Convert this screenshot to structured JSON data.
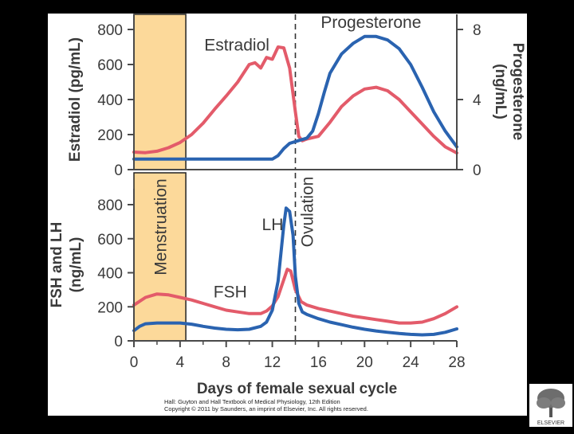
{
  "colors": {
    "background": "#000000",
    "panel": "#ffffff",
    "menstruation_band": "#fcd99a",
    "estradiol": "#e35b6a",
    "progesterone": "#2a63b0",
    "fsh": "#e35b6a",
    "lh": "#2a63b0",
    "axis": "#4a4a4a",
    "text": "#3a3a3a"
  },
  "publisher": {
    "logo_text": "ELSEVIER",
    "logo_icon": "tree-logo-icon"
  },
  "credit": {
    "line1": "Hall: Guyton and Hall Textbook of Medical Physiology, 12th Edition",
    "line2": "Copyright © 2011 by Saunders, an imprint of Elsevier, Inc. All rights reserved."
  },
  "chart_data": [
    {
      "type": "line",
      "panel": "top",
      "ylabel": "Estradiol (pg/mL)",
      "y2label": "Progesterone (ng/mL)",
      "ylim": [
        0,
        800
      ],
      "y2lim": [
        0,
        8
      ],
      "yticks": [
        "0",
        "200",
        "400",
        "600",
        "800"
      ],
      "y2ticks": [
        "0",
        "4",
        "8"
      ],
      "xlim": [
        0,
        28
      ],
      "series": [
        {
          "name": "Estradiol",
          "label": "Estradiol",
          "axis": "left",
          "color": "#e35b6a",
          "x": [
            0,
            1,
            2,
            3,
            4,
            5,
            6,
            7,
            8,
            9,
            10,
            10.5,
            11,
            11.5,
            12,
            12.5,
            13,
            13.5,
            14,
            14.3,
            14.6,
            15,
            16,
            17,
            18,
            19,
            20,
            21,
            22,
            23,
            24,
            25,
            26,
            27,
            28
          ],
          "y": [
            100,
            97,
            105,
            125,
            155,
            200,
            265,
            345,
            420,
            500,
            600,
            610,
            580,
            640,
            630,
            700,
            695,
            580,
            330,
            190,
            165,
            175,
            190,
            270,
            360,
            420,
            460,
            470,
            450,
            400,
            330,
            260,
            190,
            130,
            95
          ]
        },
        {
          "name": "Progesterone",
          "label": "Progesterone",
          "axis": "right",
          "color": "#2a63b0",
          "x": [
            0,
            1,
            2,
            3,
            4,
            5,
            6,
            7,
            8,
            9,
            10,
            11,
            12,
            12.5,
            13,
            13.5,
            14,
            14.5,
            15,
            15.5,
            16,
            16.5,
            17,
            18,
            19,
            20,
            21,
            22,
            23,
            24,
            25,
            26,
            27,
            28
          ],
          "y": [
            0.6,
            0.6,
            0.6,
            0.6,
            0.6,
            0.6,
            0.6,
            0.6,
            0.6,
            0.6,
            0.6,
            0.6,
            0.6,
            0.8,
            1.2,
            1.5,
            1.6,
            1.7,
            1.8,
            2.2,
            3.2,
            4.4,
            5.5,
            6.6,
            7.2,
            7.6,
            7.6,
            7.4,
            6.9,
            6.0,
            4.7,
            3.3,
            2.2,
            1.3
          ]
        }
      ]
    },
    {
      "type": "line",
      "panel": "bottom",
      "ylabel": "FSH and LH (ng/mL)",
      "ylim": [
        0,
        800
      ],
      "yticks": [
        "0",
        "200",
        "400",
        "600",
        "800"
      ],
      "xlabel": "Days of female sexual cycle",
      "xlim": [
        0,
        28
      ],
      "xticks": [
        "0",
        "4",
        "8",
        "12",
        "16",
        "20",
        "24",
        "28"
      ],
      "series": [
        {
          "name": "FSH",
          "label": "FSH",
          "color": "#e35b6a",
          "x": [
            0,
            1,
            2,
            3,
            4,
            5,
            6,
            7,
            8,
            9,
            10,
            11,
            11.5,
            12,
            12.5,
            13,
            13.3,
            13.6,
            14,
            14.5,
            15,
            16,
            17,
            18,
            19,
            20,
            21,
            22,
            23,
            24,
            25,
            26,
            27,
            28
          ],
          "y": [
            210,
            255,
            275,
            270,
            255,
            240,
            220,
            200,
            180,
            170,
            160,
            160,
            175,
            205,
            260,
            360,
            420,
            410,
            300,
            230,
            210,
            190,
            175,
            160,
            145,
            135,
            125,
            115,
            105,
            105,
            110,
            130,
            160,
            200
          ]
        },
        {
          "name": "LH",
          "label": "LH",
          "color": "#2a63b0",
          "x": [
            0,
            0.5,
            1,
            2,
            3,
            4,
            5,
            6,
            7,
            8,
            9,
            10,
            11,
            11.5,
            12,
            12.5,
            13,
            13.2,
            13.5,
            13.8,
            14,
            14.3,
            14.6,
            15,
            16,
            17,
            18,
            19,
            20,
            21,
            22,
            23,
            24,
            25,
            26,
            27,
            28
          ],
          "y": [
            60,
            85,
            100,
            105,
            105,
            105,
            98,
            85,
            75,
            68,
            65,
            68,
            85,
            110,
            180,
            350,
            680,
            780,
            760,
            620,
            380,
            220,
            170,
            155,
            130,
            110,
            95,
            80,
            68,
            58,
            50,
            43,
            38,
            35,
            38,
            50,
            70
          ]
        }
      ]
    }
  ],
  "annotations": {
    "menstruation": "Menstruation",
    "menstruation_days": [
      0,
      4.5
    ],
    "ovulation": "Ovulation",
    "ovulation_day": 14
  }
}
